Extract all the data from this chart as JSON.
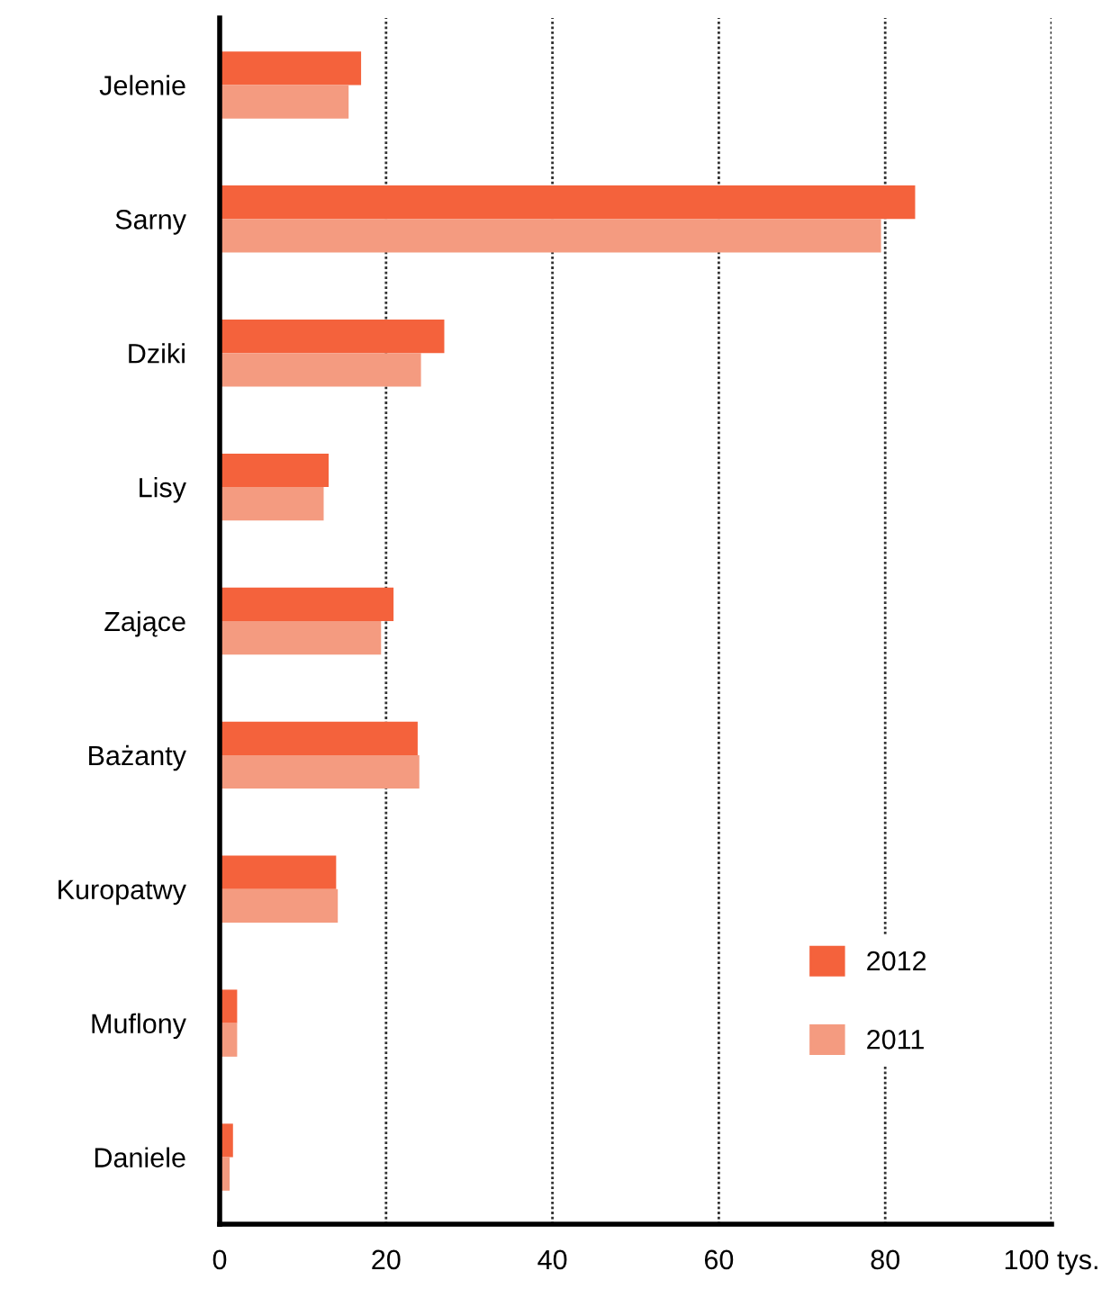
{
  "chart_data": {
    "type": "bar",
    "orientation": "horizontal",
    "categories": [
      "Jelenie",
      "Sarny",
      "Dziki",
      "Lisy",
      "Zające",
      "Bażanty",
      "Kuropatwy",
      "Muflony",
      "Daniele"
    ],
    "series": [
      {
        "name": "2012",
        "color": "#f4623c",
        "values": [
          17.0,
          83.6,
          27.0,
          13.1,
          20.9,
          23.8,
          14.0,
          2.1,
          1.6
        ]
      },
      {
        "name": "2011",
        "color": "#f49b80",
        "values": [
          15.5,
          79.5,
          24.2,
          12.5,
          19.4,
          24.0,
          14.2,
          2.1,
          1.2
        ]
      }
    ],
    "xlim": [
      0,
      100
    ],
    "xticks": [
      0,
      20,
      40,
      60,
      80,
      {
        "value": 100,
        "label": "100 tys."
      }
    ],
    "grid": "x",
    "legend": "bottom right"
  }
}
